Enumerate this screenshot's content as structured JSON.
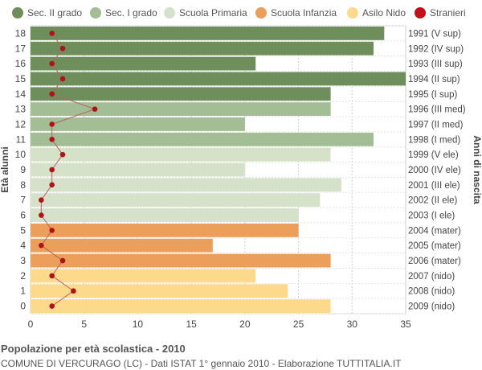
{
  "legend": [
    {
      "label": "Sec. II grado",
      "color": "#6e8f5b"
    },
    {
      "label": "Sec. I grado",
      "color": "#a3bd94"
    },
    {
      "label": "Scuola Primaria",
      "color": "#d5e1c9"
    },
    {
      "label": "Scuola Infanzia",
      "color": "#ec9f5a"
    },
    {
      "label": "Asilo Nido",
      "color": "#fdd98c"
    },
    {
      "label": "Stranieri",
      "color": "#c0111a"
    }
  ],
  "chart_data": {
    "type": "bar",
    "orientation": "horizontal",
    "ylabel": "Età alunni",
    "y2label": "Anni di nascita",
    "xlim": [
      0,
      35
    ],
    "xticks": [
      0,
      5,
      10,
      15,
      20,
      25,
      30,
      35
    ],
    "grid": true,
    "legend_position": "top",
    "rows": [
      {
        "age": "18",
        "birth": "1991 (V sup)",
        "value": 33,
        "stranieri": 2,
        "category": "Sec. II grado"
      },
      {
        "age": "17",
        "birth": "1992 (IV sup)",
        "value": 32,
        "stranieri": 3,
        "category": "Sec. II grado"
      },
      {
        "age": "16",
        "birth": "1993 (III sup)",
        "value": 21,
        "stranieri": 2,
        "category": "Sec. II grado"
      },
      {
        "age": "15",
        "birth": "1994 (II sup)",
        "value": 35,
        "stranieri": 3,
        "category": "Sec. II grado"
      },
      {
        "age": "14",
        "birth": "1995 (I sup)",
        "value": 28,
        "stranieri": 2,
        "category": "Sec. II grado"
      },
      {
        "age": "13",
        "birth": "1996 (III med)",
        "value": 28,
        "stranieri": 6,
        "category": "Sec. I grado"
      },
      {
        "age": "12",
        "birth": "1997 (II med)",
        "value": 20,
        "stranieri": 2,
        "category": "Sec. I grado"
      },
      {
        "age": "11",
        "birth": "1998 (I med)",
        "value": 32,
        "stranieri": 2,
        "category": "Sec. I grado"
      },
      {
        "age": "10",
        "birth": "1999 (V ele)",
        "value": 28,
        "stranieri": 3,
        "category": "Scuola Primaria"
      },
      {
        "age": "9",
        "birth": "2000 (IV ele)",
        "value": 20,
        "stranieri": 2,
        "category": "Scuola Primaria"
      },
      {
        "age": "8",
        "birth": "2001 (III ele)",
        "value": 29,
        "stranieri": 2,
        "category": "Scuola Primaria"
      },
      {
        "age": "7",
        "birth": "2002 (II ele)",
        "value": 27,
        "stranieri": 1,
        "category": "Scuola Primaria"
      },
      {
        "age": "6",
        "birth": "2003 (I ele)",
        "value": 25,
        "stranieri": 1,
        "category": "Scuola Primaria"
      },
      {
        "age": "5",
        "birth": "2004 (mater)",
        "value": 25,
        "stranieri": 2,
        "category": "Scuola Infanzia"
      },
      {
        "age": "4",
        "birth": "2005 (mater)",
        "value": 17,
        "stranieri": 1,
        "category": "Scuola Infanzia"
      },
      {
        "age": "3",
        "birth": "2006 (mater)",
        "value": 28,
        "stranieri": 3,
        "category": "Scuola Infanzia"
      },
      {
        "age": "2",
        "birth": "2007 (nido)",
        "value": 21,
        "stranieri": 2,
        "category": "Asilo Nido"
      },
      {
        "age": "1",
        "birth": "2008 (nido)",
        "value": 24,
        "stranieri": 4,
        "category": "Asilo Nido"
      },
      {
        "age": "0",
        "birth": "2009 (nido)",
        "value": 28,
        "stranieri": 2,
        "category": "Asilo Nido"
      }
    ]
  },
  "footer": {
    "title": "Popolazione per età scolastica - 2010",
    "subtitle": "COMUNE DI VERCURAGO (LC) - Dati ISTAT 1° gennaio 2010 - Elaborazione TUTTITALIA.IT"
  }
}
